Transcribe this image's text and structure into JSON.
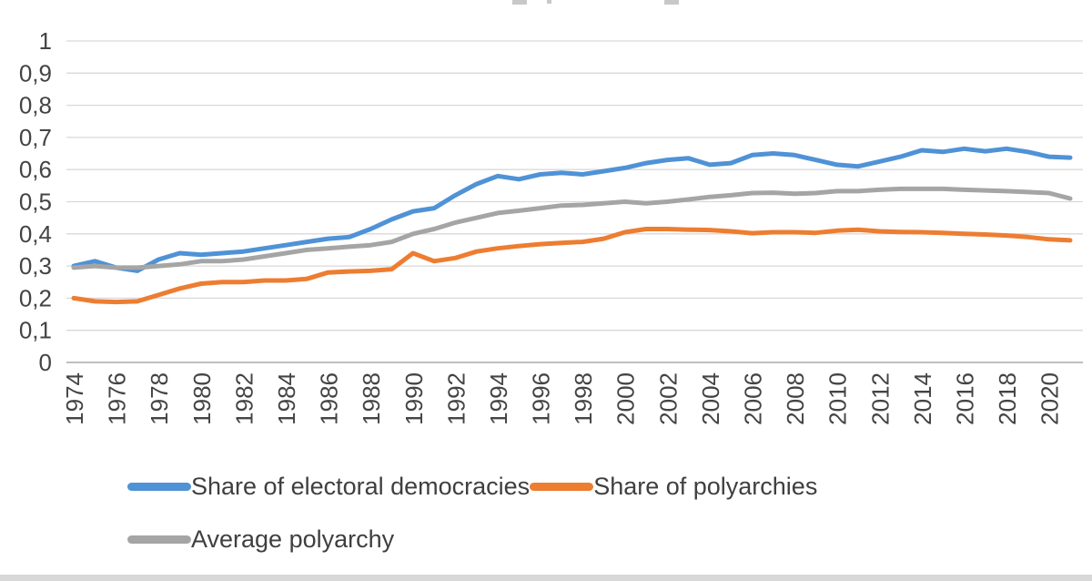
{
  "page": {
    "background": "#ffffff"
  },
  "chart_data": {
    "type": "line",
    "title": "",
    "grid": true,
    "legend_position": "bottom",
    "ylim": [
      0,
      1
    ],
    "y_tick_labels": [
      "1",
      "0,9",
      "0,8",
      "0,7",
      "0,6",
      "0,5",
      "0,4",
      "0,3",
      "0,2",
      "0,1",
      "0"
    ],
    "x_tick_labels": [
      "1974",
      "1976",
      "1978",
      "1980",
      "1982",
      "1984",
      "1986",
      "1988",
      "1990",
      "1992",
      "1994",
      "1996",
      "1998",
      "2000",
      "2002",
      "2004",
      "2006",
      "2008",
      "2010",
      "2012",
      "2014",
      "2016",
      "2018",
      "2020"
    ],
    "x": [
      1974,
      1975,
      1976,
      1977,
      1978,
      1979,
      1980,
      1981,
      1982,
      1983,
      1984,
      1985,
      1986,
      1987,
      1988,
      1989,
      1990,
      1991,
      1992,
      1993,
      1994,
      1995,
      1996,
      1997,
      1998,
      1999,
      2000,
      2001,
      2002,
      2003,
      2004,
      2005,
      2006,
      2007,
      2008,
      2009,
      2010,
      2011,
      2012,
      2013,
      2014,
      2015,
      2016,
      2017,
      2018,
      2019,
      2020,
      2021
    ],
    "series": [
      {
        "name": "Share of electoral democracies",
        "color": "#4f92d6",
        "values": [
          0.3,
          0.315,
          0.295,
          0.285,
          0.32,
          0.34,
          0.335,
          0.34,
          0.345,
          0.355,
          0.365,
          0.375,
          0.385,
          0.39,
          0.415,
          0.445,
          0.47,
          0.48,
          0.52,
          0.555,
          0.58,
          0.57,
          0.585,
          0.59,
          0.585,
          0.595,
          0.605,
          0.62,
          0.63,
          0.635,
          0.615,
          0.62,
          0.645,
          0.65,
          0.645,
          0.63,
          0.615,
          0.61,
          0.625,
          0.64,
          0.66,
          0.655,
          0.665,
          0.657,
          0.665,
          0.655,
          0.64,
          0.637
        ]
      },
      {
        "name": "Share of polyarchies",
        "color": "#ed7d31",
        "values": [
          0.2,
          0.19,
          0.188,
          0.19,
          0.21,
          0.23,
          0.245,
          0.25,
          0.25,
          0.255,
          0.255,
          0.26,
          0.28,
          0.283,
          0.285,
          0.29,
          0.34,
          0.315,
          0.325,
          0.345,
          0.355,
          0.362,
          0.368,
          0.372,
          0.375,
          0.385,
          0.405,
          0.415,
          0.415,
          0.413,
          0.412,
          0.408,
          0.402,
          0.405,
          0.405,
          0.403,
          0.41,
          0.413,
          0.408,
          0.406,
          0.405,
          0.403,
          0.4,
          0.398,
          0.395,
          0.39,
          0.383,
          0.38
        ]
      },
      {
        "name": "Average polyarchy",
        "color": "#a5a5a5",
        "values": [
          0.295,
          0.3,
          0.295,
          0.295,
          0.3,
          0.305,
          0.315,
          0.315,
          0.32,
          0.33,
          0.34,
          0.35,
          0.355,
          0.36,
          0.365,
          0.375,
          0.4,
          0.415,
          0.435,
          0.45,
          0.465,
          0.472,
          0.48,
          0.488,
          0.49,
          0.495,
          0.5,
          0.495,
          0.5,
          0.507,
          0.515,
          0.52,
          0.527,
          0.528,
          0.525,
          0.527,
          0.533,
          0.533,
          0.537,
          0.54,
          0.54,
          0.54,
          0.537,
          0.535,
          0.533,
          0.53,
          0.527,
          0.51
        ]
      }
    ],
    "axis_label_color": "#444444",
    "gridline_color": "#d9d9d9",
    "axis_line_color": "#bfbfbf"
  }
}
